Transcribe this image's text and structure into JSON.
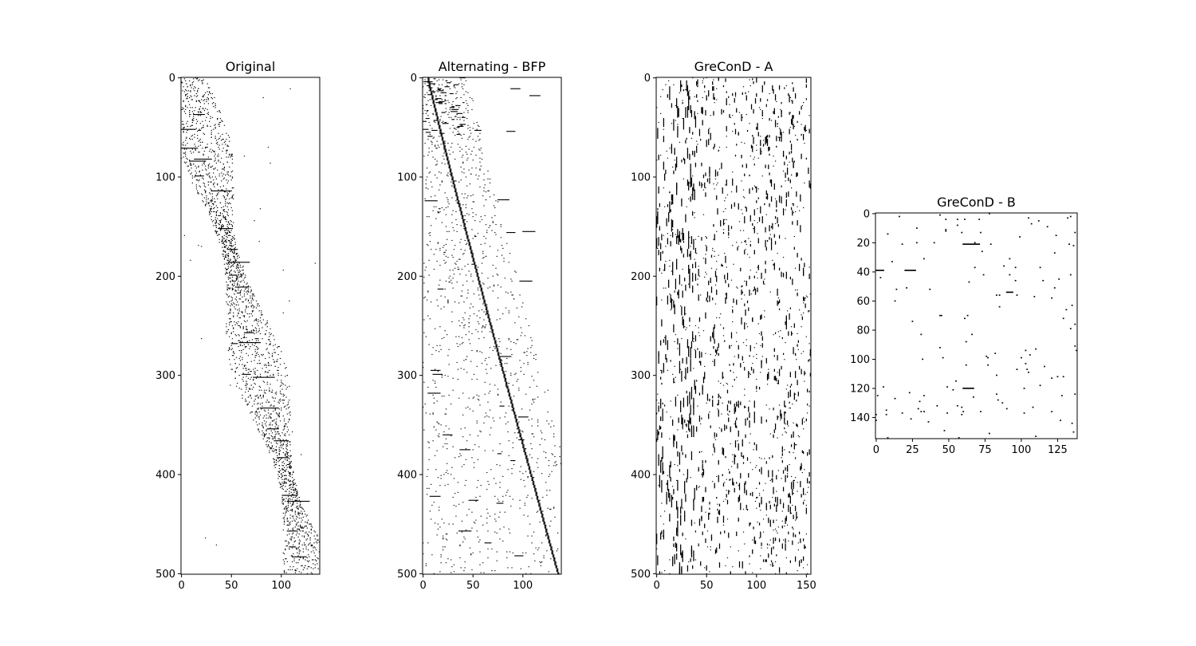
{
  "chart_data": [
    {
      "type": "heatmap",
      "title": "Original",
      "rows": 501,
      "cols": 139,
      "xlim": [
        0,
        139
      ],
      "ylim": [
        0,
        501
      ],
      "xticks": [
        0,
        50,
        100
      ],
      "yticks": [
        0,
        100,
        200,
        300,
        400,
        500
      ],
      "colormap": {
        "zero": "#ffffff",
        "one": "#000000"
      },
      "pattern": "block-diagonal band from top-left to bottom-right",
      "grid": false,
      "legend": "none"
    },
    {
      "type": "heatmap",
      "title": "Alternating - BFP",
      "rows": 501,
      "cols": 139,
      "xlim": [
        0,
        139
      ],
      "ylim": [
        0,
        501
      ],
      "xticks": [
        0,
        50,
        100
      ],
      "yticks": [
        0,
        100,
        200,
        300,
        400,
        500
      ],
      "colormap": {
        "zero": "#ffffff",
        "one": "#000000"
      },
      "pattern": "dense diagonal line with scattered horizontal blocks",
      "grid": false,
      "legend": "none"
    },
    {
      "type": "heatmap",
      "title": "GreConD - A",
      "rows": 501,
      "cols": 155,
      "xlim": [
        0,
        155
      ],
      "ylim": [
        0,
        501
      ],
      "xticks": [
        0,
        50,
        100,
        150
      ],
      "yticks": [
        0,
        100,
        200,
        300,
        400,
        500
      ],
      "colormap": {
        "zero": "#ffffff",
        "one": "#000000"
      },
      "pattern": "scattered vertical dashes across full width",
      "grid": false,
      "legend": "none"
    },
    {
      "type": "heatmap",
      "title": "GreConD - B",
      "rows": 155,
      "cols": 139,
      "xlim": [
        0,
        139
      ],
      "ylim": [
        0,
        155
      ],
      "xticks": [
        0,
        25,
        50,
        75,
        100,
        125
      ],
      "yticks": [
        0,
        20,
        40,
        60,
        80,
        100,
        120,
        140
      ],
      "colormap": {
        "zero": "#ffffff",
        "one": "#000000"
      },
      "pattern": "sparse single dots with a few short horizontal runs",
      "grid": false,
      "legend": "none"
    }
  ]
}
